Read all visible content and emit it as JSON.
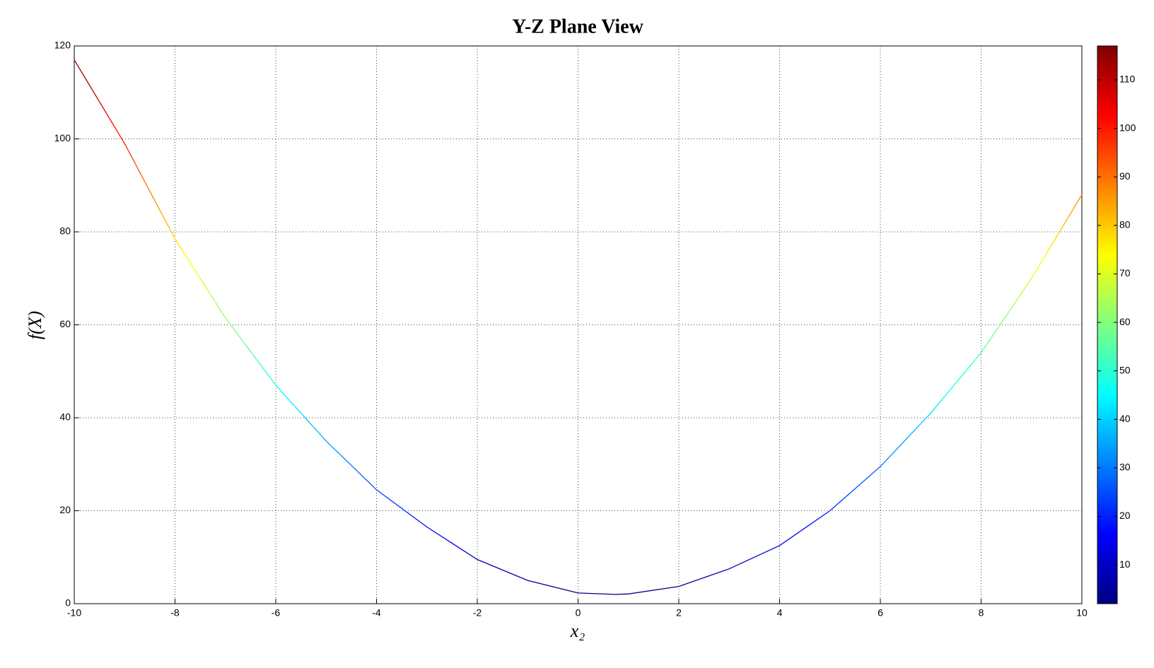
{
  "chart_data": {
    "type": "line",
    "title": "Y-Z Plane View",
    "xlabel": "x₂",
    "ylabel": "f(X)",
    "x": [
      -10,
      -9,
      -8,
      -7,
      -6,
      -5,
      -4,
      -3,
      -2,
      -1,
      0,
      0.75,
      1,
      2,
      3,
      4,
      5,
      6,
      7,
      8,
      9,
      10
    ],
    "series": [
      {
        "values": [
          117,
          99,
          78.5,
          61.5,
          47,
          35,
          24.5,
          16.5,
          9.5,
          5,
          2.3,
          2,
          2.1,
          3.7,
          7.5,
          12.5,
          20,
          29.5,
          41,
          54,
          70,
          88
        ]
      }
    ],
    "xlim": [
      -10,
      10
    ],
    "xticks": [
      -10,
      -8,
      -6,
      -4,
      -2,
      0,
      2,
      4,
      6,
      8,
      10
    ],
    "ylim": [
      0,
      120
    ],
    "yticks": [
      0,
      20,
      40,
      60,
      80,
      100,
      120
    ],
    "grid": true,
    "colormap": "jet",
    "clim": [
      2,
      117
    ],
    "cticks": [
      10,
      20,
      30,
      40,
      50,
      60,
      70,
      80,
      90,
      100,
      110
    ]
  }
}
